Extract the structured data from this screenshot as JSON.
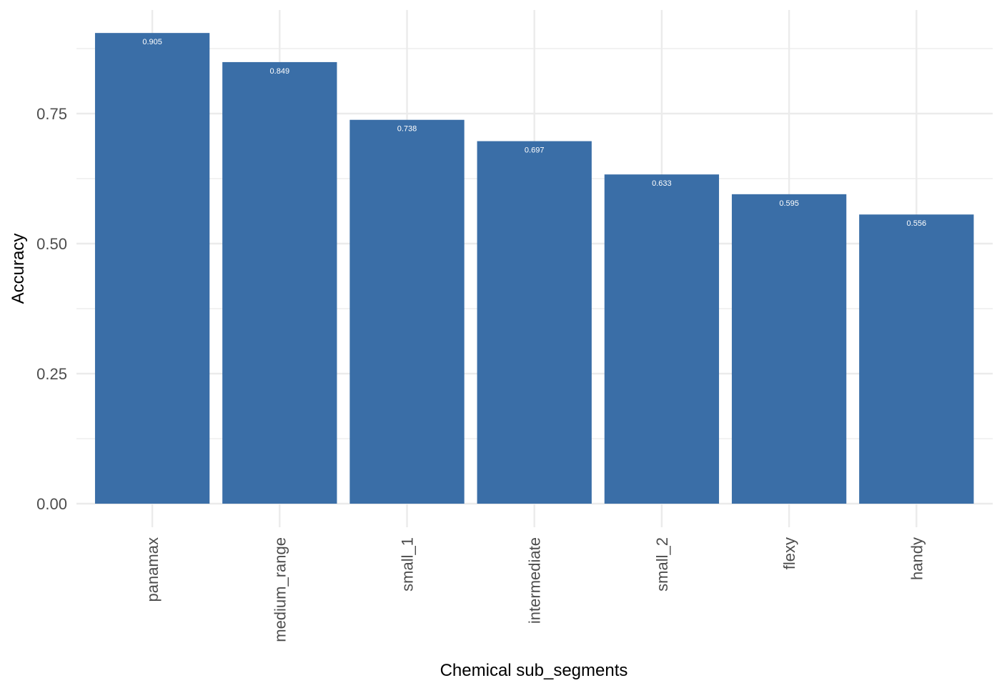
{
  "chart_data": {
    "type": "bar",
    "title": "",
    "xlabel": "Chemical sub_segments",
    "ylabel": "Accuracy",
    "categories": [
      "panamax",
      "medium_range",
      "small_1",
      "intermediate",
      "small_2",
      "flexy",
      "handy"
    ],
    "values": [
      0.905,
      0.849,
      0.738,
      0.697,
      0.633,
      0.595,
      0.556
    ],
    "data_labels": [
      "0.905",
      "0.849",
      "0.738",
      "0.697",
      "0.633",
      "0.595",
      "0.556"
    ],
    "ylim": [
      0,
      0.905
    ],
    "yticks": [
      0,
      0.25,
      0.5,
      0.75
    ],
    "ytick_labels": [
      "0.00",
      "0.25",
      "0.50",
      "0.75"
    ],
    "minor_yticks": [
      0.125,
      0.375,
      0.625,
      0.875
    ],
    "grid": true,
    "legend": "none",
    "colors": {
      "bar": "#3A6EA7",
      "grid": "#EBEBEB",
      "background": "#FFFFFF"
    }
  }
}
